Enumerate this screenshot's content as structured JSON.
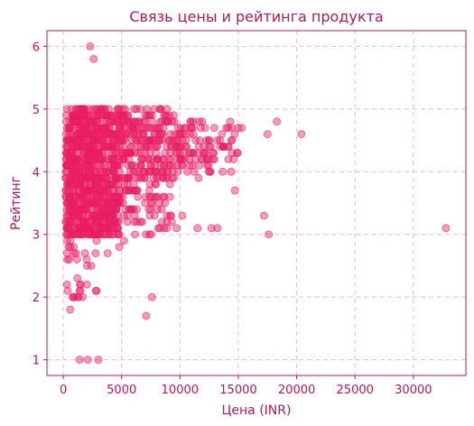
{
  "chart_data": {
    "type": "scatter",
    "title": "Связь цены и рейтинга продукта",
    "xlabel": "Цена (INR)",
    "ylabel": "Рейтинг",
    "xlim": [
      -1400,
      34500
    ],
    "ylim": [
      0.75,
      6.25
    ],
    "xticks": [
      0,
      5000,
      10000,
      15000,
      20000,
      25000,
      30000
    ],
    "yticks": [
      1,
      2,
      3,
      4,
      5,
      6
    ],
    "grid": true,
    "color": "#e91e63",
    "accent_text_color": "#b5175c",
    "point_count_approx": 1400,
    "outliers": [
      {
        "x": 2300,
        "y": 6.0
      },
      {
        "x": 2600,
        "y": 5.8
      },
      {
        "x": 1400,
        "y": 1.0
      },
      {
        "x": 2100,
        "y": 1.0
      },
      {
        "x": 3000,
        "y": 1.0
      },
      {
        "x": 600,
        "y": 1.8
      },
      {
        "x": 800,
        "y": 2.0
      },
      {
        "x": 1300,
        "y": 2.0
      },
      {
        "x": 1200,
        "y": 2.3
      },
      {
        "x": 2000,
        "y": 2.6
      },
      {
        "x": 2400,
        "y": 2.5
      },
      {
        "x": 3800,
        "y": 2.7
      },
      {
        "x": 4800,
        "y": 2.8
      },
      {
        "x": 5200,
        "y": 2.9
      },
      {
        "x": 7100,
        "y": 1.7
      },
      {
        "x": 7600,
        "y": 2.0
      },
      {
        "x": 32800,
        "y": 3.1
      },
      {
        "x": 17600,
        "y": 3.0
      },
      {
        "x": 17200,
        "y": 3.3
      },
      {
        "x": 18300,
        "y": 4.8
      },
      {
        "x": 20400,
        "y": 4.6
      },
      {
        "x": 17500,
        "y": 4.6
      },
      {
        "x": 14700,
        "y": 3.7
      },
      {
        "x": 13200,
        "y": 3.1
      },
      {
        "x": 12700,
        "y": 3.1
      },
      {
        "x": 11500,
        "y": 3.1
      },
      {
        "x": 10200,
        "y": 3.3
      },
      {
        "x": 9700,
        "y": 3.1
      },
      {
        "x": 15300,
        "y": 4.7
      },
      {
        "x": 14900,
        "y": 4.3
      },
      {
        "x": 13700,
        "y": 4.4
      },
      {
        "x": 12600,
        "y": 4.0
      },
      {
        "x": 11600,
        "y": 3.9
      },
      {
        "x": 10400,
        "y": 4.2
      }
    ],
    "clusters": [
      {
        "x_min": 200,
        "x_max": 4800,
        "y_min": 3.0,
        "y_max": 5.0,
        "count": 900
      },
      {
        "x_min": 4800,
        "x_max": 9500,
        "y_min": 3.8,
        "y_max": 5.0,
        "count": 240
      },
      {
        "x_min": 4800,
        "x_max": 9500,
        "y_min": 3.0,
        "y_max": 3.8,
        "count": 70
      },
      {
        "x_min": 9500,
        "x_max": 15000,
        "y_min": 4.0,
        "y_max": 4.8,
        "count": 110
      },
      {
        "x_min": 300,
        "x_max": 3000,
        "y_min": 2.0,
        "y_max": 3.0,
        "count": 30
      }
    ]
  }
}
